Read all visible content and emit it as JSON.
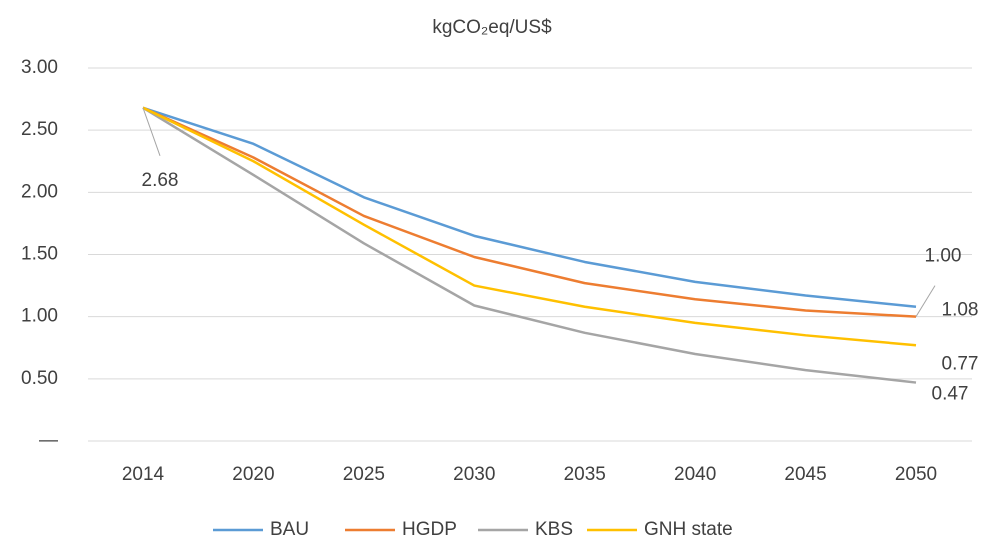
{
  "chart_data": {
    "type": "line",
    "title": "kgCO₂eq/US$",
    "categories": [
      "2014",
      "2020",
      "2025",
      "2030",
      "2035",
      "2040",
      "2045",
      "2050"
    ],
    "series": [
      {
        "name": "BAU",
        "color": "#5b9bd5",
        "values": [
          2.68,
          2.39,
          1.96,
          1.65,
          1.44,
          1.28,
          1.17,
          1.08
        ],
        "value_labels": [
          null,
          null,
          null,
          null,
          null,
          null,
          null,
          "1.08"
        ]
      },
      {
        "name": "HGDP",
        "color": "#ed7d31",
        "values": [
          2.68,
          2.28,
          1.81,
          1.48,
          1.27,
          1.14,
          1.05,
          1.0
        ],
        "value_labels": [
          null,
          null,
          null,
          null,
          null,
          null,
          null,
          "1.00"
        ]
      },
      {
        "name": "KBS",
        "color": "#a5a5a5",
        "values": [
          2.68,
          2.14,
          1.59,
          1.09,
          0.87,
          0.7,
          0.57,
          0.47
        ],
        "value_labels": [
          "2.68",
          null,
          null,
          null,
          null,
          null,
          null,
          "0.47"
        ]
      },
      {
        "name": "GNH state",
        "color": "#ffc000",
        "values": [
          2.68,
          2.25,
          1.74,
          1.25,
          1.08,
          0.95,
          0.85,
          0.77
        ],
        "value_labels": [
          null,
          null,
          null,
          null,
          null,
          null,
          null,
          "0.77"
        ]
      }
    ],
    "ylim": [
      0,
      3
    ],
    "yticks": [
      {
        "value": 0,
        "label": "—"
      },
      {
        "value": 0.5,
        "label": "0.50"
      },
      {
        "value": 1,
        "label": "1.00"
      },
      {
        "value": 1.5,
        "label": "1.50"
      },
      {
        "value": 2,
        "label": "2.00"
      },
      {
        "value": 2.5,
        "label": "2.50"
      },
      {
        "value": 3,
        "label": "3.00"
      }
    ],
    "grid": true,
    "legend": "bottom"
  }
}
